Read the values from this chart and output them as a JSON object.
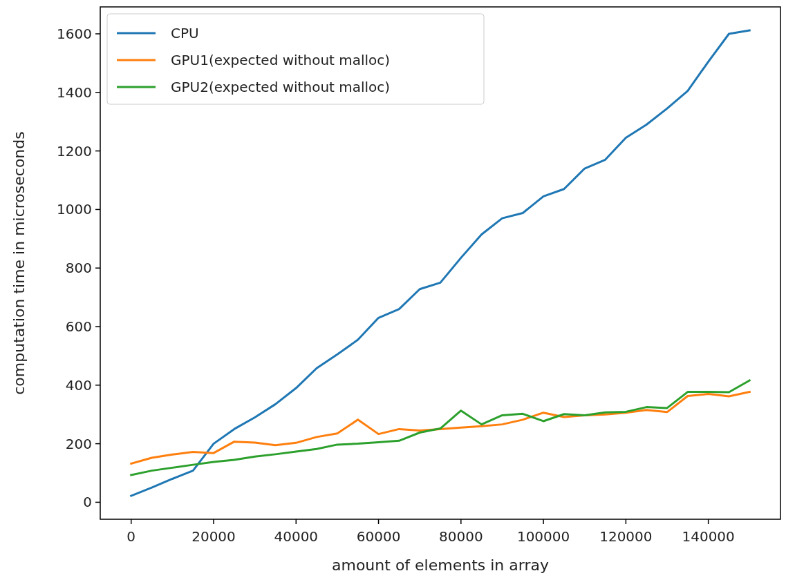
{
  "chart_data": {
    "type": "line",
    "xlabel": "amount of elements in array",
    "ylabel": "computation time in microseconds",
    "x": [
      0,
      5000,
      10000,
      15000,
      20000,
      25000,
      30000,
      35000,
      40000,
      45000,
      50000,
      55000,
      60000,
      65000,
      70000,
      75000,
      80000,
      85000,
      90000,
      95000,
      100000,
      105000,
      110000,
      115000,
      120000,
      125000,
      130000,
      135000,
      140000,
      145000,
      150000
    ],
    "series": [
      {
        "name": "CPU",
        "color": "#1f77b4",
        "values": [
          22,
          50,
          80,
          108,
          200,
          250,
          290,
          335,
          390,
          458,
          505,
          555,
          630,
          660,
          728,
          750,
          835,
          915,
          970,
          988,
          1045,
          1070,
          1140,
          1170,
          1245,
          1290,
          1345,
          1405,
          1505,
          1600,
          1612
        ]
      },
      {
        "name": "GPU1(expected without malloc)",
        "color": "#ff7f0e",
        "values": [
          132,
          152,
          163,
          172,
          168,
          207,
          204,
          195,
          203,
          223,
          235,
          282,
          233,
          250,
          245,
          250,
          255,
          260,
          266,
          282,
          306,
          291,
          297,
          300,
          306,
          315,
          308,
          363,
          370,
          362,
          377
        ]
      },
      {
        "name": "GPU2(expected without malloc)",
        "color": "#2ca02c",
        "values": [
          93,
          108,
          118,
          128,
          138,
          145,
          156,
          164,
          173,
          182,
          197,
          200,
          205,
          210,
          238,
          252,
          313,
          266,
          297,
          302,
          277,
          301,
          297,
          307,
          309,
          325,
          322,
          377,
          377,
          376,
          416
        ]
      }
    ],
    "xlim": [
      -7500,
      157500
    ],
    "xticks": [
      0,
      20000,
      40000,
      60000,
      80000,
      100000,
      120000,
      140000
    ],
    "ylim": [
      -58,
      1692
    ],
    "yticks": [
      0,
      200,
      400,
      600,
      800,
      1000,
      1200,
      1400,
      1600
    ],
    "grid": false,
    "legend": "top left",
    "line_style": "solid",
    "marker": "none"
  }
}
